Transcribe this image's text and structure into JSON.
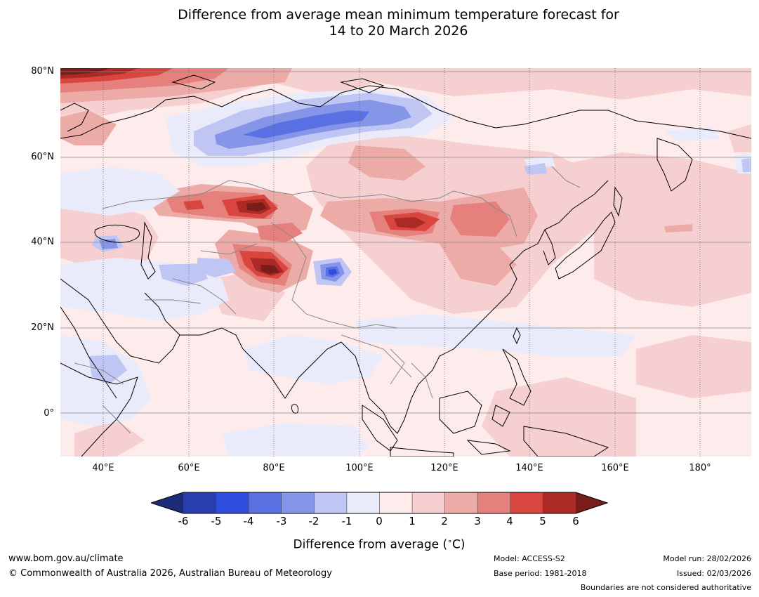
{
  "title": {
    "line1": "Difference from average mean minimum temperature forecast for",
    "line2": "14 to 20 March 2026"
  },
  "map": {
    "region": "Asia",
    "lat_labels": [
      "80°N",
      "60°N",
      "40°N",
      "20°N",
      "0°"
    ],
    "lon_labels": [
      "40°E",
      "60°E",
      "80°E",
      "100°E",
      "120°E",
      "140°E",
      "160°E",
      "180°"
    ]
  },
  "colorbar": {
    "labels": [
      "-6",
      "-5",
      "-4",
      "-3",
      "-2",
      "-1",
      "0",
      "1",
      "2",
      "3",
      "4",
      "5",
      "6"
    ],
    "colors": [
      "#1d2c78",
      "#2a3daf",
      "#2f4ee0",
      "#5b71e3",
      "#8595e8",
      "#c0c6f4",
      "#e9ebfb",
      "#fdeceb",
      "#f6d0d0",
      "#edaba8",
      "#e6807c",
      "#d8463f",
      "#ab2a25",
      "#7a1c1a"
    ],
    "title": "Difference from average (°C)",
    "title_prefix": "Difference from average (",
    "title_degree": "∘",
    "title_suffix": "C)"
  },
  "footer": {
    "url": "www.bom.gov.au/climate",
    "copyright": "© Commonwealth of Australia 2026, Australian Bureau of Meteorology",
    "model": "Model: ACCESS-S2",
    "base_period": "Base period: 1981-2018",
    "model_run": "Model run: 28/02/2026",
    "issued": "Issued: 02/03/2026",
    "boundaries": "Boundaries are not considered authoritative"
  }
}
